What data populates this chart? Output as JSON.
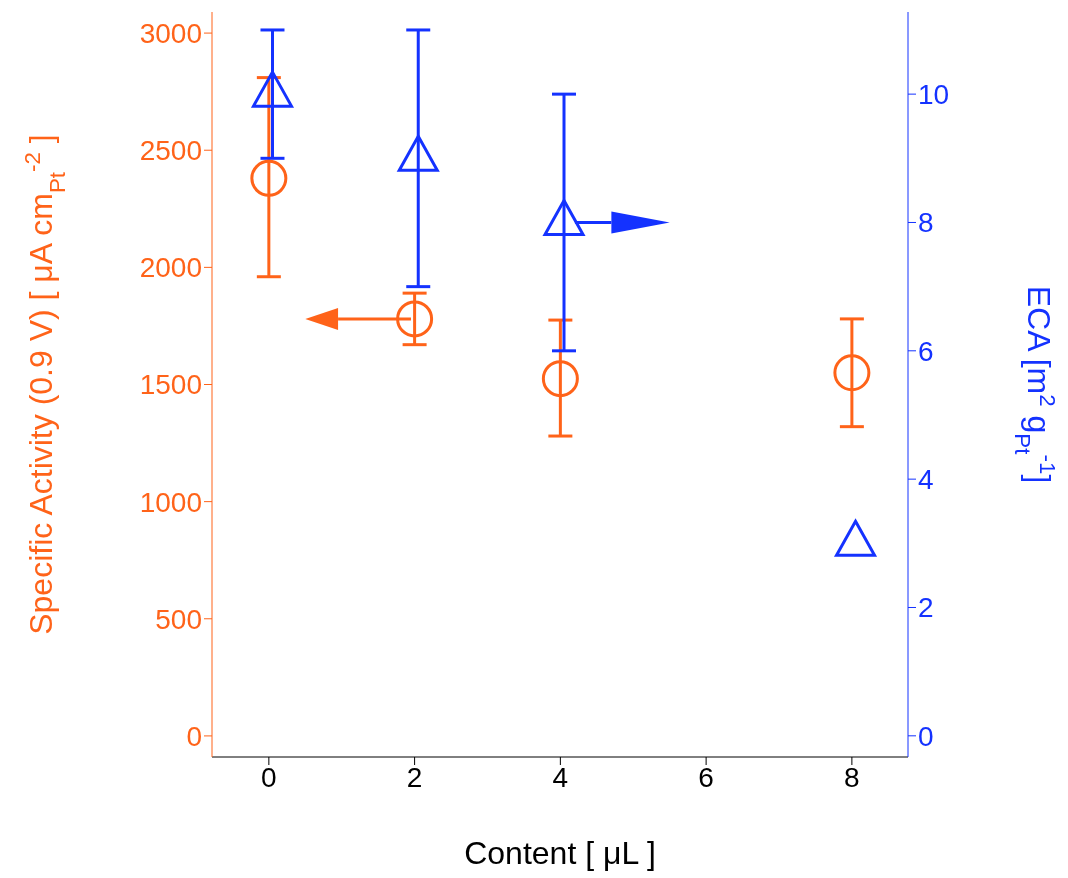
{
  "chart_data": {
    "type": "scatter",
    "xlabel": "Content [ μL ]",
    "ylabel": "Specific Activity (0.9 V) [ μA cm$_{Pt}$$^{-2}$ ]",
    "y2label": "ECA [m$^{2}$ g$_{Pt}$$^{-1}$]",
    "xlim": [
      -0.78,
      8.77
    ],
    "xticks": [
      0,
      2,
      4,
      6,
      8
    ],
    "ylim": [
      -90,
      3090
    ],
    "yticks": [
      0,
      500,
      1000,
      1500,
      2000,
      2500,
      3000
    ],
    "y2lim": [
      -0.33,
      11.28
    ],
    "y2ticks": [
      0,
      2,
      4,
      6,
      8,
      10
    ],
    "series": [
      {
        "color": "#ff6319",
        "marker": "circle",
        "x": [
          0,
          2,
          4,
          8
        ],
        "values": [
          2380,
          1780,
          1525,
          1550
        ],
        "errors": [
          [
            1960,
            2810
          ],
          [
            1670,
            1890
          ],
          [
            1280,
            1775
          ],
          [
            1320,
            1780
          ]
        ]
      },
      {
        "color": "#1432ff",
        "marker": "triangle",
        "axis": "y2",
        "x": [
          0.05,
          2.05,
          4.05,
          8.05
        ],
        "values": [
          10,
          9,
          8,
          3
        ],
        "errors": [
          [
            9,
            11
          ],
          [
            7,
            11
          ],
          [
            6,
            10
          ],
          null
        ]
      }
    ]
  }
}
